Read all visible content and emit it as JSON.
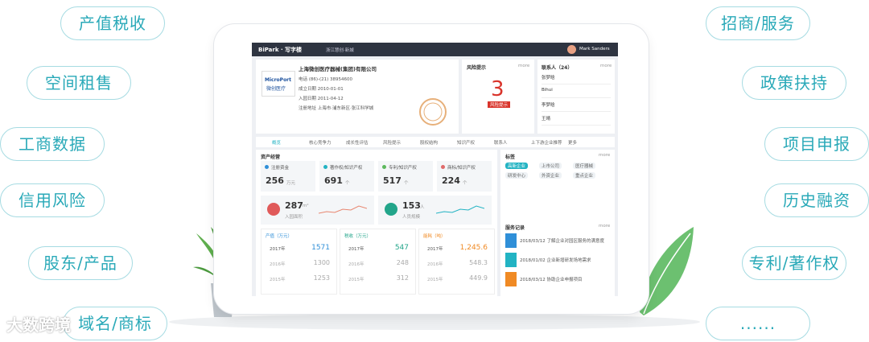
{
  "left_tags": [
    "产值税收",
    "空间租售",
    "工商数据",
    "信用风险",
    "股东/产品",
    "域名/商标"
  ],
  "right_tags": [
    "招商/服务",
    "政策扶持",
    "项目申报",
    "历史融资",
    "专利/著作权",
    "......"
  ],
  "watermark": "大数跨境",
  "app": {
    "brand": "BiPark · 写字楼",
    "location": "浙江慧创·新城",
    "user": "Mark Sanders",
    "company": {
      "name": "上海微创医疗器械(集团)有限公司",
      "logo": "MicroPort",
      "logo_cn": "微创医疗",
      "fields": [
        "电话 (86)-(21) 38954600",
        "成立日期 2010-01-01",
        "入园日期 2011-04-12",
        "注册地址 上海市·浦东新区·张江科学城"
      ]
    },
    "risk": {
      "title": "风险提示",
      "more": "more",
      "count": "3",
      "level": "风险提示"
    },
    "contacts": {
      "title": "联系人（24）",
      "more": "more",
      "names": [
        "张梦晗",
        "Bihui",
        "李梦晗",
        "王晴"
      ]
    },
    "tabs": [
      "概览",
      "核心竞争力",
      "成长性评估",
      "风险提示",
      "股权结构",
      "知识产权",
      "联系人",
      "上下游企业推荐",
      "更多"
    ],
    "assets": {
      "title": "资产经营",
      "cards": [
        {
          "label": "注册资金",
          "value": "256",
          "unit": "万元"
        },
        {
          "label": "著作权/知识产权",
          "value": "691",
          "unit": "个"
        },
        {
          "label": "专利/知识产权",
          "value": "517",
          "unit": "个"
        },
        {
          "label": "商标/知识产权",
          "value": "224",
          "unit": "个"
        }
      ],
      "wide": [
        {
          "value": "287",
          "unit": "m²",
          "label": "入园面积"
        },
        {
          "value": "153",
          "unit": "人",
          "label": "人员规模"
        }
      ]
    },
    "tables": [
      {
        "title": "产值（万元）",
        "rows": [
          [
            "2017年",
            "1571"
          ],
          [
            "2016年",
            "1300"
          ],
          [
            "2015年",
            "1253"
          ]
        ]
      },
      {
        "title": "税收（万元）",
        "rows": [
          [
            "2017年",
            "547"
          ],
          [
            "2016年",
            "248"
          ],
          [
            "2015年",
            "312"
          ]
        ]
      },
      {
        "title": "能耗（吨）",
        "rows": [
          [
            "2017年",
            "1,245.6"
          ],
          [
            "2016年",
            "548.3"
          ],
          [
            "2015年",
            "449.9"
          ]
        ]
      }
    ],
    "labels": {
      "title": "标签",
      "more": "more",
      "tags": [
        "高新企业",
        "上市公司",
        "医疗器械",
        "研发中心",
        "外资企业",
        "重点企业"
      ]
    },
    "service": {
      "title": "服务记录",
      "more": "more",
      "items": [
        "2018/03/12 了解企业对园区服务的满意度",
        "2018/01/02 企业新增研发场地需求",
        "2018/03/12 协助企业申报项目"
      ]
    }
  }
}
